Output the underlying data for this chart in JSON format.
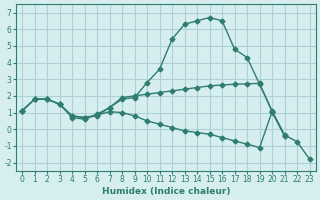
{
  "xlabel": "Humidex (Indice chaleur)",
  "ylabel": "",
  "bg_color": "#d6eef0",
  "grid_color": "#b0d0d8",
  "line_color": "#2e7d6e",
  "xlim": [
    -0.5,
    23.5
  ],
  "ylim": [
    -2.5,
    7.5
  ],
  "xticks": [
    0,
    1,
    2,
    3,
    4,
    5,
    6,
    7,
    8,
    9,
    10,
    11,
    12,
    13,
    14,
    15,
    16,
    17,
    18,
    19,
    20,
    21,
    22,
    23
  ],
  "yticks": [
    -2,
    -1,
    0,
    1,
    2,
    3,
    4,
    5,
    6,
    7
  ],
  "line1_x": [
    0,
    1,
    2,
    3,
    4,
    5,
    6,
    7,
    8,
    9,
    10,
    11,
    12,
    13,
    14,
    15,
    16,
    17,
    18,
    19,
    20,
    21,
    22,
    23
  ],
  "line1_y": [
    1.1,
    1.8,
    1.8,
    1.5,
    0.8,
    0.7,
    0.8,
    1.3,
    1.8,
    1.9,
    2.8,
    3.6,
    5.4,
    6.3,
    6.5,
    6.7,
    6.5,
    4.8,
    4.3,
    2.7,
    1.1,
    -0.35,
    -0.75,
    -1.8
  ],
  "line2_x": [
    0,
    1,
    2,
    3,
    4,
    5,
    6,
    7,
    8,
    9,
    10,
    11,
    12,
    13,
    14,
    15,
    16,
    17,
    18,
    19,
    20,
    21,
    22,
    23
  ],
  "line2_y": [
    1.1,
    1.8,
    1.8,
    1.5,
    0.7,
    0.6,
    0.9,
    1.3,
    1.9,
    2.0,
    2.1,
    2.2,
    2.3,
    2.4,
    2.5,
    2.6,
    2.65,
    2.7,
    2.72,
    2.75,
    1.05,
    -0.4,
    null,
    null
  ],
  "line3_x": [
    0,
    1,
    2,
    3,
    4,
    5,
    6,
    7,
    8,
    9,
    10,
    11,
    12,
    13,
    14,
    15,
    16,
    17,
    18,
    19,
    20,
    21,
    22,
    23
  ],
  "line3_y": [
    1.1,
    1.8,
    1.8,
    1.5,
    0.8,
    0.7,
    0.85,
    1.05,
    1.0,
    0.8,
    0.5,
    0.3,
    0.1,
    -0.1,
    -0.2,
    -0.3,
    -0.5,
    -0.7,
    -0.9,
    -1.1,
    1.05,
    -0.4,
    null,
    null
  ]
}
